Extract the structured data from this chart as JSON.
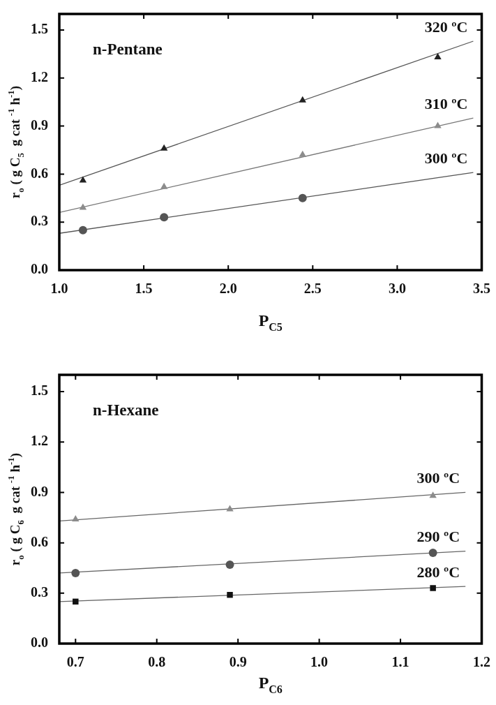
{
  "chart_data": [
    {
      "type": "scatter",
      "title": "n-Pentane",
      "xlabel": "P$_{C5}$",
      "ylabel": "r$_{o}$ ( g C$_{5}$  g cat $^{-1}$ h$^{-1}$)",
      "xlim": [
        1.0,
        3.5
      ],
      "ylim": [
        0,
        1.6
      ],
      "xticks": [
        {
          "value": 1,
          "label": "1.0"
        },
        1.5,
        {
          "value": 2,
          "label": "2.0"
        },
        2.5,
        {
          "value": 3,
          "label": "3.0"
        },
        3.5
      ],
      "yticks": [
        {
          "value": 0,
          "label": "0.0"
        },
        0.3,
        0.6,
        0.9,
        1.2,
        1.5
      ],
      "series": [
        {
          "color": "#222222",
          "marker": "triangle",
          "x": [
            1.14,
            1.62,
            2.44,
            3.24
          ],
          "values": [
            0.56,
            0.76,
            1.06,
            1.33
          ]
        },
        {
          "color": "#8c8c8c",
          "marker": "triangle",
          "x": [
            1.14,
            1.62,
            2.44,
            3.24
          ],
          "values": [
            0.39,
            0.52,
            0.72,
            0.9
          ]
        },
        {
          "color": "#555555",
          "marker": "circle",
          "x": [
            1.14,
            1.62,
            2.44
          ],
          "values": [
            0.25,
            0.33,
            0.45
          ]
        },
        {
          "type": "line",
          "name": "320 ºC",
          "color": "#555555",
          "marker": "none",
          "x": [
            1.0,
            3.45
          ],
          "values": [
            0.53,
            1.43
          ]
        },
        {
          "type": "line",
          "name": "310 ºC",
          "color": "#777777",
          "marker": "none",
          "x": [
            1.0,
            3.45
          ],
          "values": [
            0.36,
            0.95
          ]
        },
        {
          "type": "line",
          "name": "300 ºC",
          "color": "#555555",
          "marker": "none",
          "x": [
            1.0,
            3.45
          ],
          "values": [
            0.23,
            0.61
          ]
        }
      ]
    },
    {
      "type": "scatter",
      "title": "n-Hexane",
      "xlabel": "P$_{C6}$",
      "ylabel": "r$_{o}$ ( g C$_{6}$  g cat $^{-1}$ h$^{-1}$)",
      "xlim": [
        0.68,
        1.2
      ],
      "ylim": [
        0,
        1.6
      ],
      "xticks": [
        0.7,
        0.8,
        0.9,
        {
          "value": 1,
          "label": "1.0"
        },
        1.1,
        1.2
      ],
      "yticks": [
        {
          "value": 0,
          "label": "0.0"
        },
        0.3,
        0.6,
        0.9,
        1.2,
        1.5
      ],
      "series": [
        {
          "color": "#8c8c8c",
          "marker": "triangle",
          "x": [
            0.7,
            0.89,
            1.14
          ],
          "values": [
            0.74,
            0.8,
            0.88
          ]
        },
        {
          "color": "#555555",
          "marker": "circle",
          "x": [
            0.7,
            0.89,
            1.14
          ],
          "values": [
            0.42,
            0.47,
            0.54
          ]
        },
        {
          "color": "#111111",
          "marker": "square",
          "x": [
            0.7,
            0.89,
            1.14
          ],
          "values": [
            0.25,
            0.29,
            0.33
          ]
        },
        {
          "type": "line",
          "name": "300 ºC",
          "color": "#666666",
          "marker": "none",
          "x": [
            0.68,
            1.18
          ],
          "values": [
            0.73,
            0.9
          ]
        },
        {
          "type": "line",
          "name": "290 ºC",
          "color": "#666666",
          "marker": "none",
          "x": [
            0.68,
            1.18
          ],
          "values": [
            0.42,
            0.55
          ]
        },
        {
          "type": "line",
          "name": "280 ºC",
          "color": "#666666",
          "marker": "none",
          "x": [
            0.68,
            1.18
          ],
          "values": [
            0.25,
            0.34
          ]
        }
      ]
    }
  ]
}
